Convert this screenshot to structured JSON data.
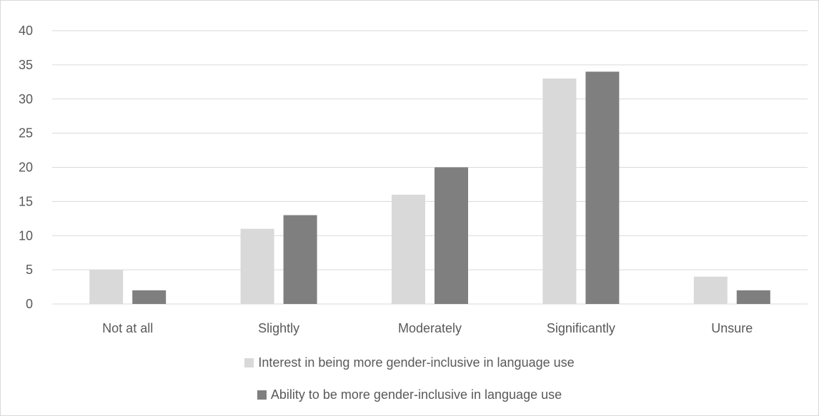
{
  "chart_data": {
    "type": "bar",
    "title": "",
    "xlabel": "",
    "ylabel": "",
    "categories": [
      "Not at all",
      "Slightly",
      "Moderately",
      "Significantly",
      "Unsure"
    ],
    "series": [
      {
        "name": "Interest in being more gender-inclusive in language use",
        "values": [
          5,
          11,
          16,
          33,
          4
        ],
        "color": "#d9d9d9"
      },
      {
        "name": "Ability to be more gender-inclusive in language use",
        "values": [
          2,
          13,
          20,
          34,
          2
        ],
        "color": "#7f7f7f"
      }
    ],
    "ylim": [
      0,
      40
    ],
    "yticks": [
      "0",
      "5",
      "10",
      "15",
      "20",
      "25",
      "30",
      "35",
      "40"
    ],
    "grid": true,
    "legend_position": "bottom",
    "gridline_color": "#d9d9d9",
    "axis_color": "#d9d9d9"
  }
}
